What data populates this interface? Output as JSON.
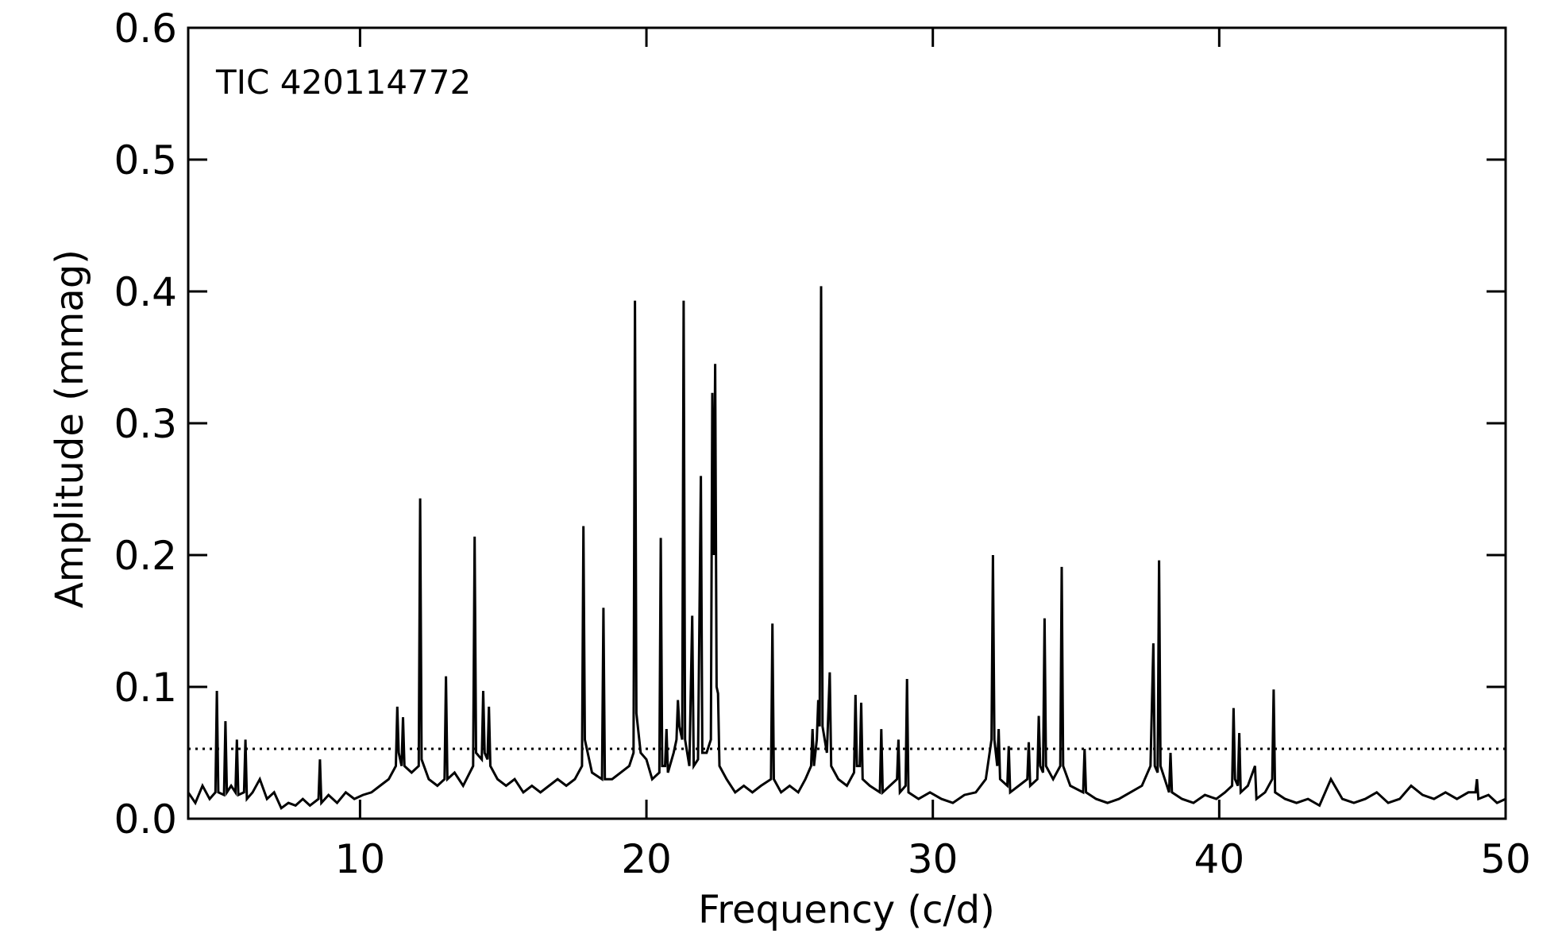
{
  "chart_data": {
    "type": "line",
    "annotation": "TIC 420114772",
    "xlabel": "Frequency (c/d)",
    "ylabel": "Amplitude (mmag)",
    "xlim": [
      4,
      50
    ],
    "ylim": [
      0,
      0.6
    ],
    "xticks": [
      10,
      20,
      30,
      40,
      50
    ],
    "yticks": [
      {
        "value": 0,
        "label": "0.0"
      },
      0.1,
      0.2,
      0.3,
      0.4,
      0.5,
      0.6
    ],
    "threshold": 0.053,
    "threshold_style": "dotted",
    "series": [
      {
        "color": "#000000",
        "x": [
          4.0,
          4.25,
          4.5,
          4.75,
          4.95,
          5.0,
          5.05,
          5.25,
          5.3,
          5.35,
          5.5,
          5.65,
          5.7,
          5.75,
          5.95,
          6.0,
          6.05,
          6.25,
          6.5,
          6.75,
          7.0,
          7.25,
          7.5,
          7.75,
          8.0,
          8.25,
          8.55,
          8.6,
          8.65,
          8.9,
          9.2,
          9.5,
          9.8,
          10.1,
          10.4,
          10.7,
          11.0,
          11.25,
          11.3,
          11.35,
          11.45,
          11.5,
          11.55,
          11.8,
          12.05,
          12.1,
          12.15,
          12.4,
          12.7,
          12.95,
          13.0,
          13.05,
          13.3,
          13.6,
          13.95,
          14.0,
          14.05,
          14.25,
          14.3,
          14.35,
          14.45,
          14.5,
          14.55,
          14.8,
          15.1,
          15.4,
          15.7,
          16.0,
          16.3,
          16.6,
          16.9,
          17.2,
          17.5,
          17.75,
          17.8,
          17.85,
          18.1,
          18.45,
          18.5,
          18.55,
          18.8,
          19.1,
          19.4,
          19.55,
          19.6,
          19.65,
          19.8,
          20.0,
          20.2,
          20.45,
          20.5,
          20.55,
          20.65,
          20.7,
          20.75,
          20.95,
          21.05,
          21.1,
          21.15,
          21.25,
          21.3,
          21.35,
          21.5,
          21.6,
          21.65,
          21.8,
          21.9,
          21.95,
          22.1,
          22.25,
          22.3,
          22.35,
          22.4,
          22.45,
          22.5,
          22.55,
          22.8,
          23.1,
          23.4,
          23.7,
          24.0,
          24.35,
          24.4,
          24.45,
          24.7,
          25.0,
          25.3,
          25.55,
          25.75,
          25.8,
          25.85,
          25.95,
          26.0,
          26.05,
          26.1,
          26.15,
          26.3,
          26.4,
          26.45,
          26.7,
          27.0,
          27.25,
          27.3,
          27.35,
          27.45,
          27.5,
          27.55,
          27.8,
          28.15,
          28.2,
          28.25,
          28.5,
          28.75,
          28.8,
          28.85,
          29.05,
          29.1,
          29.15,
          29.5,
          29.9,
          30.3,
          30.7,
          31.1,
          31.5,
          31.85,
          32.05,
          32.1,
          32.15,
          32.25,
          32.3,
          32.35,
          32.6,
          32.65,
          32.7,
          33.0,
          33.3,
          33.35,
          33.4,
          33.65,
          33.7,
          33.75,
          33.85,
          33.9,
          33.95,
          34.2,
          34.45,
          34.5,
          34.55,
          34.8,
          35.25,
          35.3,
          35.35,
          35.7,
          36.1,
          36.5,
          36.9,
          37.3,
          37.6,
          37.7,
          37.75,
          37.85,
          37.9,
          37.95,
          38.25,
          38.3,
          38.35,
          38.7,
          39.1,
          39.5,
          39.9,
          40.2,
          40.45,
          40.5,
          40.55,
          40.65,
          40.7,
          40.75,
          41.0,
          41.25,
          41.3,
          41.6,
          41.85,
          41.9,
          41.95,
          42.3,
          42.7,
          43.1,
          43.5,
          43.9,
          44.3,
          44.7,
          45.1,
          45.5,
          45.9,
          46.3,
          46.7,
          47.1,
          47.5,
          47.9,
          48.3,
          48.7,
          48.95,
          49.0,
          49.05,
          49.4,
          49.7,
          50.0
        ],
        "values": [
          0.02,
          0.012,
          0.025,
          0.015,
          0.02,
          0.097,
          0.02,
          0.018,
          0.074,
          0.02,
          0.025,
          0.02,
          0.06,
          0.018,
          0.02,
          0.06,
          0.015,
          0.02,
          0.03,
          0.015,
          0.02,
          0.008,
          0.012,
          0.01,
          0.015,
          0.01,
          0.015,
          0.045,
          0.012,
          0.018,
          0.012,
          0.02,
          0.015,
          0.018,
          0.02,
          0.025,
          0.03,
          0.04,
          0.085,
          0.05,
          0.04,
          0.077,
          0.04,
          0.035,
          0.04,
          0.243,
          0.045,
          0.03,
          0.025,
          0.03,
          0.108,
          0.03,
          0.035,
          0.025,
          0.04,
          0.214,
          0.05,
          0.045,
          0.097,
          0.05,
          0.045,
          0.085,
          0.04,
          0.03,
          0.025,
          0.03,
          0.02,
          0.025,
          0.02,
          0.025,
          0.03,
          0.025,
          0.03,
          0.04,
          0.222,
          0.06,
          0.035,
          0.03,
          0.16,
          0.03,
          0.03,
          0.035,
          0.04,
          0.05,
          0.393,
          0.08,
          0.05,
          0.045,
          0.03,
          0.035,
          0.213,
          0.04,
          0.04,
          0.068,
          0.035,
          0.05,
          0.06,
          0.09,
          0.07,
          0.06,
          0.393,
          0.06,
          0.04,
          0.154,
          0.04,
          0.045,
          0.26,
          0.05,
          0.05,
          0.06,
          0.323,
          0.2,
          0.345,
          0.1,
          0.095,
          0.04,
          0.03,
          0.02,
          0.025,
          0.02,
          0.025,
          0.03,
          0.148,
          0.03,
          0.02,
          0.025,
          0.02,
          0.03,
          0.04,
          0.068,
          0.04,
          0.06,
          0.09,
          0.07,
          0.404,
          0.07,
          0.05,
          0.111,
          0.04,
          0.03,
          0.025,
          0.035,
          0.094,
          0.04,
          0.04,
          0.088,
          0.03,
          0.025,
          0.02,
          0.068,
          0.02,
          0.025,
          0.03,
          0.06,
          0.02,
          0.025,
          0.106,
          0.02,
          0.015,
          0.02,
          0.015,
          0.012,
          0.018,
          0.02,
          0.03,
          0.06,
          0.2,
          0.06,
          0.04,
          0.068,
          0.03,
          0.025,
          0.055,
          0.02,
          0.025,
          0.03,
          0.058,
          0.025,
          0.03,
          0.078,
          0.04,
          0.035,
          0.152,
          0.04,
          0.03,
          0.04,
          0.191,
          0.04,
          0.025,
          0.02,
          0.053,
          0.02,
          0.015,
          0.012,
          0.015,
          0.02,
          0.025,
          0.04,
          0.133,
          0.04,
          0.035,
          0.196,
          0.04,
          0.02,
          0.05,
          0.02,
          0.015,
          0.012,
          0.018,
          0.015,
          0.02,
          0.025,
          0.084,
          0.03,
          0.025,
          0.065,
          0.02,
          0.025,
          0.04,
          0.015,
          0.02,
          0.03,
          0.098,
          0.02,
          0.015,
          0.012,
          0.015,
          0.01,
          0.03,
          0.015,
          0.012,
          0.015,
          0.02,
          0.012,
          0.015,
          0.025,
          0.018,
          0.015,
          0.02,
          0.015,
          0.02,
          0.02,
          0.03,
          0.015,
          0.018,
          0.012,
          0.015
        ]
      }
    ]
  }
}
